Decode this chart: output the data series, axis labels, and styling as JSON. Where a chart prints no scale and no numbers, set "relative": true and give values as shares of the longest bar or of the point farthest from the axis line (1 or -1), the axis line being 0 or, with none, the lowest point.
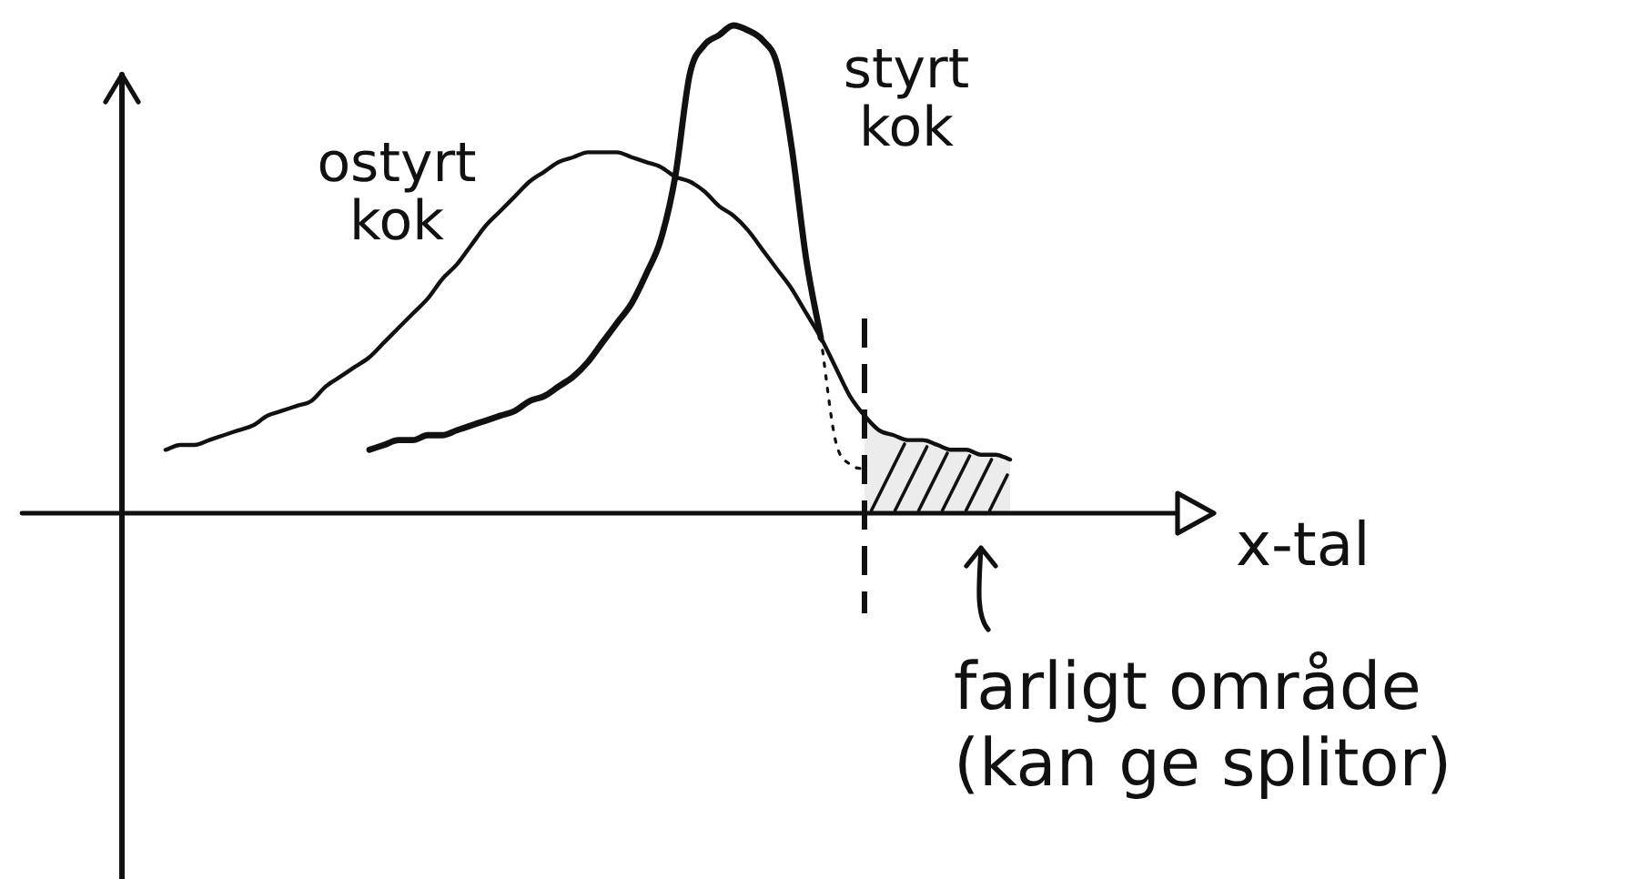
{
  "chart_data": {
    "type": "line",
    "relative": true,
    "tick_labels": false,
    "marker": "none",
    "xlabel": "x-tal",
    "annotations": [
      "farligt område (kan ge splitor)"
    ],
    "categories": [
      null,
      null,
      null,
      null,
      null,
      null,
      null,
      null,
      null,
      null,
      null,
      null,
      null,
      null,
      null,
      null,
      null,
      null,
      null,
      null,
      null,
      null,
      null,
      null,
      null,
      null,
      null,
      null,
      null,
      null,
      null,
      null,
      null,
      null,
      null,
      null,
      null,
      null,
      null,
      null,
      null,
      null,
      null,
      null,
      null,
      null,
      null,
      null,
      null,
      null,
      null,
      null,
      null,
      null,
      null,
      null,
      null,
      null,
      null,
      null,
      null,
      null,
      null,
      null,
      null,
      null,
      null,
      null,
      null,
      null,
      null,
      null,
      null,
      null,
      null,
      null
    ],
    "series": [
      {
        "name": "ostyrt kok",
        "color": "#111111",
        "values": [
          null,
          null,
          null,
          0.13,
          0.14,
          0.14,
          0.15,
          0.16,
          0.17,
          0.18,
          0.2,
          0.21,
          0.22,
          0.23,
          0.26,
          0.28,
          0.3,
          0.32,
          0.35,
          0.38,
          0.41,
          0.44,
          0.48,
          0.51,
          0.55,
          0.59,
          0.62,
          0.65,
          0.68,
          0.7,
          0.72,
          0.73,
          0.74,
          0.74,
          0.74,
          0.73,
          0.72,
          0.71,
          0.69,
          0.68,
          0.66,
          0.63,
          0.61,
          0.58,
          0.54,
          0.5,
          0.46,
          0.41,
          0.36,
          0.3,
          0.24,
          0.2,
          0.17,
          0.16,
          0.15,
          0.15,
          0.14,
          0.13,
          0.13,
          0.12,
          0.12,
          0.11,
          null,
          null,
          null,
          null,
          null,
          null,
          null,
          null,
          null,
          null,
          null,
          null,
          null,
          null
        ]
      },
      {
        "name": "styrt kok",
        "color": "#111111",
        "values": [
          null,
          null,
          null,
          null,
          null,
          null,
          null,
          null,
          null,
          null,
          null,
          null,
          null,
          null,
          null,
          null,
          null,
          0.13,
          0.14,
          0.15,
          0.15,
          0.16,
          0.16,
          0.17,
          0.18,
          0.19,
          0.2,
          0.21,
          0.23,
          0.24,
          0.26,
          0.28,
          0.31,
          0.35,
          0.39,
          0.43,
          0.49,
          0.56,
          0.69,
          0.9,
          0.96,
          0.98,
          1,
          0.99,
          0.97,
          0.92,
          0.75,
          0.52,
          0.36,
          null,
          null,
          null,
          null,
          null,
          null,
          null,
          null,
          null,
          null,
          null,
          null,
          null,
          null,
          null,
          null,
          null,
          null,
          null,
          null,
          null,
          null,
          null,
          null,
          null,
          null,
          null
        ]
      },
      {
        "color": "#111111",
        "line_style": "dotted",
        "values": [
          null,
          null,
          null,
          null,
          null,
          null,
          null,
          null,
          null,
          null,
          null,
          null,
          null,
          null,
          null,
          null,
          null,
          null,
          null,
          null,
          null,
          null,
          null,
          null,
          null,
          null,
          null,
          null,
          null,
          null,
          null,
          null,
          null,
          null,
          null,
          null,
          null,
          null,
          null,
          null,
          null,
          null,
          null,
          null,
          null,
          null,
          null,
          null,
          0.36,
          0.15,
          0.1,
          0.09,
          null,
          null,
          null,
          null,
          null,
          null,
          null,
          null,
          null,
          null,
          null,
          null,
          null,
          null,
          null,
          null,
          null,
          null,
          null,
          null,
          null,
          null,
          null,
          null
        ]
      },
      {
        "type": "area",
        "color": "#111111",
        "values": [
          null,
          null,
          null,
          null,
          null,
          null,
          null,
          null,
          null,
          null,
          null,
          null,
          null,
          null,
          null,
          null,
          null,
          null,
          null,
          null,
          null,
          null,
          null,
          null,
          null,
          null,
          null,
          null,
          null,
          null,
          null,
          null,
          null,
          null,
          null,
          null,
          null,
          null,
          null,
          null,
          null,
          null,
          null,
          null,
          null,
          null,
          null,
          null,
          null,
          null,
          null,
          0.2,
          0.17,
          0.16,
          0.15,
          0.15,
          0.14,
          0.13,
          0.13,
          0.12,
          0.12,
          0.11,
          null,
          null,
          null,
          null,
          null,
          null,
          null,
          null,
          null,
          null,
          null,
          null,
          null,
          null
        ]
      }
    ]
  }
}
